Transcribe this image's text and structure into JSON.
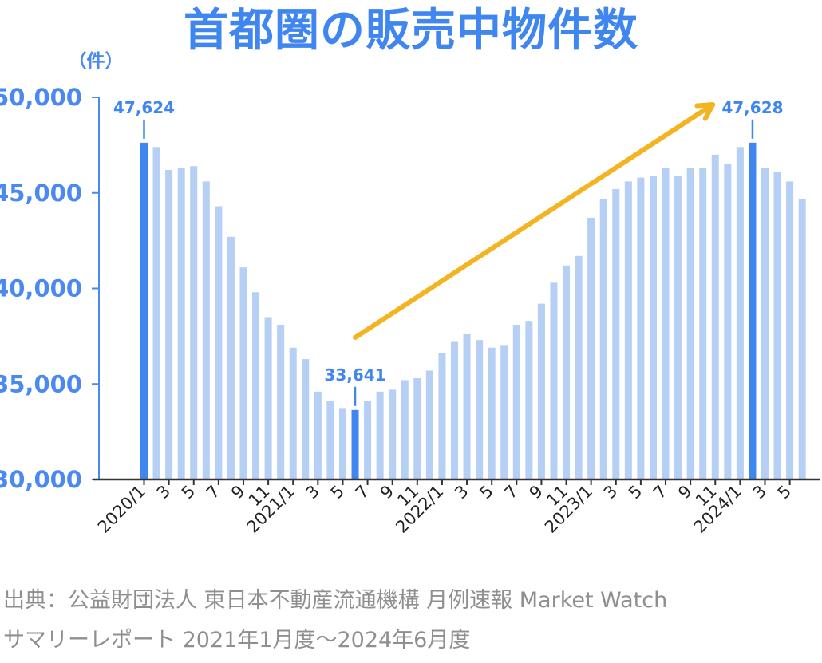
{
  "title": "首都圏の販売中物件数",
  "colors": {
    "title": "#3f86f0",
    "bar_normal": "#b5cff5",
    "bar_highlight": "#3f86f0",
    "axis": "#333333",
    "tick_label": "#4a8af0",
    "arrow": "#f4b421",
    "source_text": "#8f8f8f"
  },
  "source": {
    "line1": "出典：公益財団法人 東日本不動産流通機構 月例速報 Market Watch",
    "line2": "サマリーレポート 2021年1月度～2024年6月度"
  },
  "chart_data": {
    "type": "bar",
    "title": "首都圏の販売中物件数",
    "ylabel": "（件）",
    "xlabel": "",
    "ylim": [
      30000,
      50000
    ],
    "yticks": [
      30000,
      35000,
      40000,
      45000,
      50000
    ],
    "ytick_labels": [
      "30,000",
      "35,000",
      "40,000",
      "45,000",
      "50,000"
    ],
    "grid": false,
    "trend_arrow": {
      "from_category": "2021/6",
      "to_category": "2023/11",
      "color": "#f4b421"
    },
    "categories": [
      "2020/1",
      "2020/2",
      "2020/3",
      "2020/4",
      "2020/5",
      "2020/6",
      "2020/7",
      "2020/8",
      "2020/9",
      "2020/10",
      "2020/11",
      "2020/12",
      "2021/1",
      "2021/2",
      "2021/3",
      "2021/4",
      "2021/5",
      "2021/6",
      "2021/7",
      "2021/8",
      "2021/9",
      "2021/10",
      "2021/11",
      "2021/12",
      "2022/1",
      "2022/2",
      "2022/3",
      "2022/4",
      "2022/5",
      "2022/6",
      "2022/7",
      "2022/8",
      "2022/9",
      "2022/10",
      "2022/11",
      "2022/12",
      "2023/1",
      "2023/2",
      "2023/3",
      "2023/4",
      "2023/5",
      "2023/6",
      "2023/7",
      "2023/8",
      "2023/9",
      "2023/10",
      "2023/11",
      "2023/12",
      "2024/1",
      "2024/2",
      "2024/3",
      "2024/4",
      "2024/5",
      "2024/6"
    ],
    "tick_labels": [
      "2020/1",
      "",
      "3",
      "",
      "5",
      "",
      "7",
      "",
      "9",
      "",
      "11",
      "",
      "2021/1",
      "",
      "3",
      "",
      "5",
      "",
      "7",
      "",
      "9",
      "",
      "11",
      "",
      "2022/1",
      "",
      "3",
      "",
      "5",
      "",
      "7",
      "",
      "9",
      "",
      "11",
      "",
      "2023/1",
      "",
      "3",
      "",
      "5",
      "",
      "7",
      "",
      "9",
      "",
      "11",
      "",
      "2024/1",
      "",
      "3",
      "",
      "5",
      ""
    ],
    "values": [
      47624,
      47400,
      46200,
      46300,
      46400,
      45600,
      44300,
      42700,
      41100,
      39800,
      38500,
      38100,
      36900,
      36300,
      34600,
      34100,
      33700,
      33641,
      34100,
      34600,
      34700,
      35200,
      35300,
      35700,
      36600,
      37200,
      37600,
      37300,
      36900,
      37000,
      38100,
      38300,
      39200,
      40300,
      41200,
      41700,
      43700,
      44700,
      45200,
      45600,
      45800,
      45900,
      46300,
      45900,
      46300,
      46300,
      47000,
      46500,
      47400,
      47628,
      46300,
      46100,
      45600,
      44700
    ],
    "highlighted_indices": [
      0,
      17,
      49
    ],
    "data_labels": [
      {
        "index": 0,
        "text": "47,624"
      },
      {
        "index": 17,
        "text": "33,641"
      },
      {
        "index": 49,
        "text": "47,628"
      }
    ]
  }
}
